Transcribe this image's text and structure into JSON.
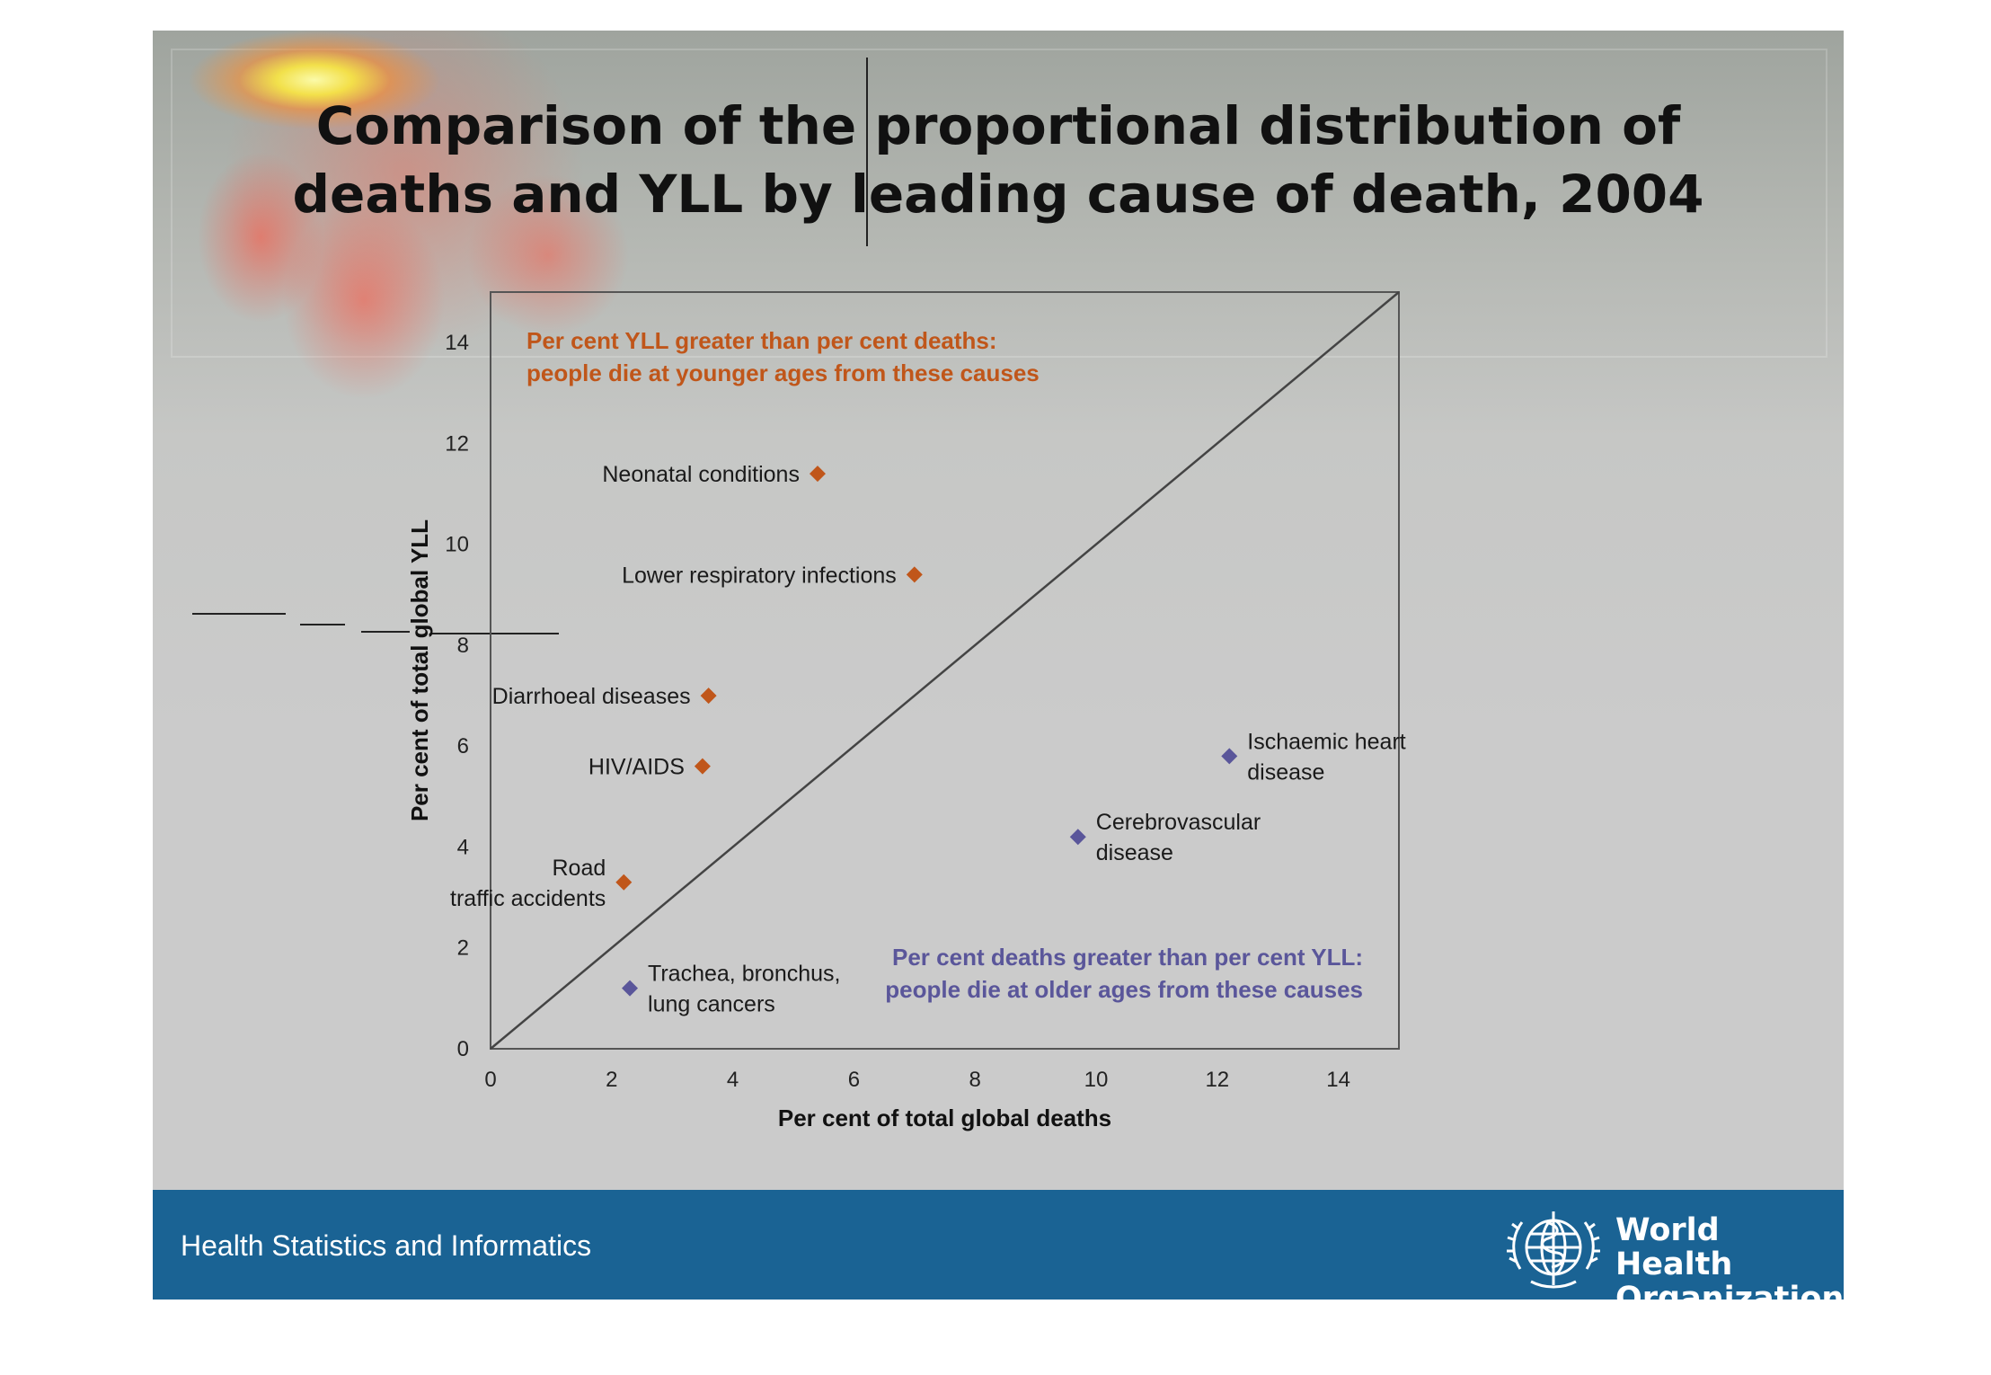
{
  "title": {
    "line1": "Comparison of the proportional distribution of",
    "line2": "deaths and YLL by leading cause of death, 2004"
  },
  "footer": {
    "text": "Health Statistics and Informatics",
    "org_line1": "World Health",
    "org_line2": "Organization",
    "logo_icon": "who-emblem-icon"
  },
  "colors": {
    "orange": "#c0561a",
    "purple": "#5a569a",
    "footer_bg": "#1a6394"
  },
  "chart_data": {
    "type": "scatter",
    "xlabel": "Per cent of total global deaths",
    "ylabel": "Per cent of total global YLL",
    "xlim": [
      0,
      15
    ],
    "ylim": [
      0,
      15
    ],
    "x_ticks": [
      "0",
      "2",
      "4",
      "6",
      "8",
      "10",
      "12",
      "14"
    ],
    "y_ticks": [
      "0",
      "2",
      "4",
      "6",
      "8",
      "10",
      "12",
      "14"
    ],
    "grid": false,
    "reference_line": "y = x",
    "annotations": {
      "upper_left": [
        "Per cent YLL greater than per cent deaths:",
        "people die at younger ages from these causes"
      ],
      "lower_right": [
        "Per cent deaths greater than per cent YLL:",
        "people die at older ages from these causes"
      ]
    },
    "points": [
      {
        "label": [
          "Neonatal conditions"
        ],
        "x": 5.4,
        "y": 11.4,
        "group": "yll_greater"
      },
      {
        "label": [
          "Lower respiratory infections"
        ],
        "x": 7.0,
        "y": 9.4,
        "group": "yll_greater"
      },
      {
        "label": [
          "Diarrhoeal diseases"
        ],
        "x": 3.6,
        "y": 7.0,
        "group": "yll_greater"
      },
      {
        "label": [
          "HIV/AIDS"
        ],
        "x": 3.5,
        "y": 5.6,
        "group": "yll_greater"
      },
      {
        "label": [
          "Road",
          "traffic accidents"
        ],
        "x": 2.2,
        "y": 3.3,
        "group": "yll_greater"
      },
      {
        "label": [
          "Trachea, bronchus,",
          "lung cancers"
        ],
        "x": 2.3,
        "y": 1.2,
        "group": "deaths_greater"
      },
      {
        "label": [
          "Cerebrovascular",
          "disease"
        ],
        "x": 9.7,
        "y": 4.2,
        "group": "deaths_greater"
      },
      {
        "label": [
          "Ischaemic heart",
          "disease"
        ],
        "x": 12.2,
        "y": 5.8,
        "group": "deaths_greater"
      }
    ]
  }
}
